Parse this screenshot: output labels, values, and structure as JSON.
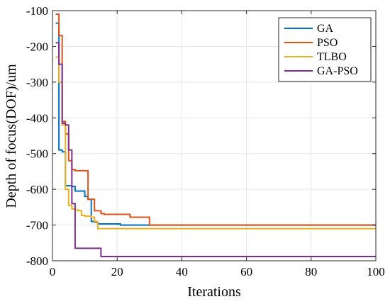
{
  "chart_data": {
    "type": "line",
    "xlabel": "Iterations",
    "ylabel": "Depth of focus(DOF)/um",
    "xlim": [
      0,
      100
    ],
    "ylim": [
      -800,
      -100
    ],
    "xticks": [
      0,
      20,
      40,
      60,
      80,
      100
    ],
    "yticks": [
      -100,
      -200,
      -300,
      -400,
      -500,
      -600,
      -700,
      -800
    ],
    "grid": true,
    "legend_position": "top-right",
    "series": [
      {
        "name": "GA",
        "color": "#0072BD",
        "x": [
          1,
          2,
          3,
          4,
          5,
          6,
          7,
          8,
          9,
          10,
          11,
          12,
          13,
          14,
          15,
          16,
          17,
          18,
          19,
          20,
          21,
          22,
          23,
          24,
          25,
          26,
          27,
          28,
          29,
          30,
          100
        ],
        "y": [
          -135,
          -490,
          -495,
          -590,
          -590,
          -592,
          -605,
          -605,
          -605,
          -620,
          -628,
          -690,
          -692,
          -697,
          -697,
          -697,
          -697,
          -697,
          -697,
          -697,
          -700,
          -700,
          -700,
          -700,
          -700,
          -700,
          -700,
          -700,
          -700,
          -700,
          -700
        ]
      },
      {
        "name": "PSO",
        "color": "#D95319",
        "x": [
          1,
          2,
          3,
          4,
          5,
          6,
          7,
          8,
          9,
          10,
          11,
          12,
          13,
          14,
          15,
          16,
          17,
          18,
          19,
          20,
          21,
          22,
          23,
          24,
          25,
          26,
          27,
          28,
          29,
          30,
          100
        ],
        "y": [
          -110,
          -170,
          -410,
          -445,
          -520,
          -545,
          -548,
          -548,
          -548,
          -548,
          -628,
          -628,
          -660,
          -660,
          -668,
          -670,
          -670,
          -670,
          -670,
          -670,
          -670,
          -670,
          -670,
          -678,
          -678,
          -678,
          -678,
          -678,
          -678,
          -700,
          -700
        ]
      },
      {
        "name": "TLBO",
        "color": "#EDB120",
        "x": [
          1,
          2,
          3,
          4,
          5,
          6,
          7,
          8,
          9,
          10,
          11,
          12,
          13,
          14,
          15,
          16,
          17,
          18,
          19,
          20,
          100
        ],
        "y": [
          -230,
          -300,
          -420,
          -600,
          -645,
          -655,
          -658,
          -660,
          -673,
          -675,
          -675,
          -678,
          -690,
          -710,
          -710,
          -710,
          -710,
          -710,
          -710,
          -710,
          -710
        ]
      },
      {
        "name": "GA-PSO",
        "color": "#7E2F8E",
        "x": [
          1,
          2,
          3,
          4,
          5,
          6,
          7,
          8,
          9,
          10,
          11,
          12,
          13,
          14,
          15,
          16,
          100
        ],
        "y": [
          -190,
          -250,
          -415,
          -420,
          -490,
          -640,
          -765,
          -765,
          -765,
          -765,
          -765,
          -765,
          -765,
          -765,
          -788,
          -788,
          -788
        ]
      }
    ]
  }
}
